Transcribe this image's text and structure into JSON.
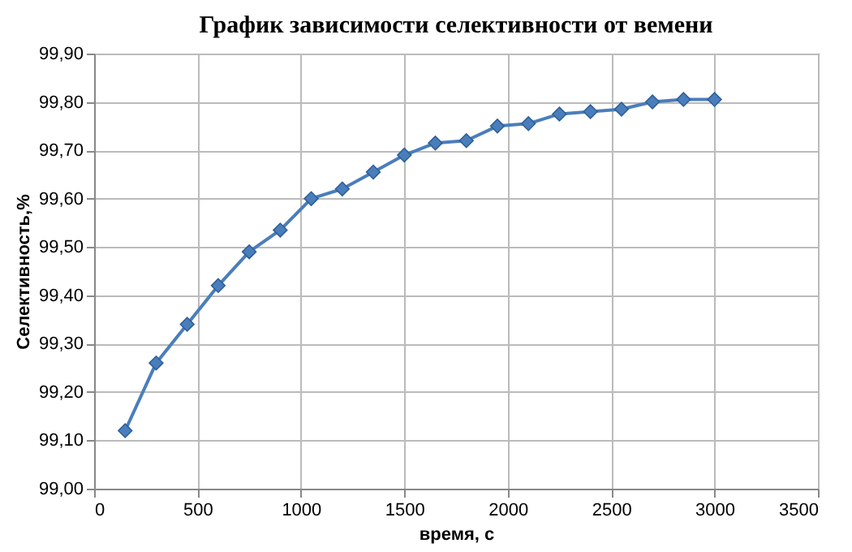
{
  "chart_data": {
    "type": "line",
    "title": "График зависимости селективности  от вемени",
    "xlabel": "время, с",
    "ylabel": "Селективность,%",
    "x": [
      150,
      300,
      450,
      600,
      750,
      900,
      1050,
      1200,
      1350,
      1500,
      1650,
      1800,
      1950,
      2100,
      2250,
      2400,
      2550,
      2700,
      2850,
      3000
    ],
    "series": [
      {
        "color": "#4a7ebb",
        "values": [
          99.12,
          99.26,
          99.34,
          99.42,
          99.49,
          99.535,
          99.6,
          99.62,
          99.655,
          99.69,
          99.715,
          99.72,
          99.75,
          99.755,
          99.775,
          99.78,
          99.785,
          99.8,
          99.805,
          99.805
        ]
      }
    ],
    "xlim": [
      0,
      3500
    ],
    "xticks": [
      0,
      500,
      1000,
      1500,
      2000,
      2500,
      3000,
      3500
    ],
    "ylim": [
      99.0,
      99.9
    ],
    "yticks": [
      {
        "value": 99.0,
        "label": "99,00"
      },
      {
        "value": 99.1,
        "label": "99,10"
      },
      {
        "value": 99.2,
        "label": "99,20"
      },
      {
        "value": 99.3,
        "label": "99,30"
      },
      {
        "value": 99.4,
        "label": "99,40"
      },
      {
        "value": 99.5,
        "label": "99,50"
      },
      {
        "value": 99.6,
        "label": "99,60"
      },
      {
        "value": 99.7,
        "label": "99,70"
      },
      {
        "value": 99.8,
        "label": "99,80"
      },
      {
        "value": 99.9,
        "label": "99,90"
      }
    ],
    "grid": true,
    "marker": "diamond",
    "line_style": "solid"
  }
}
